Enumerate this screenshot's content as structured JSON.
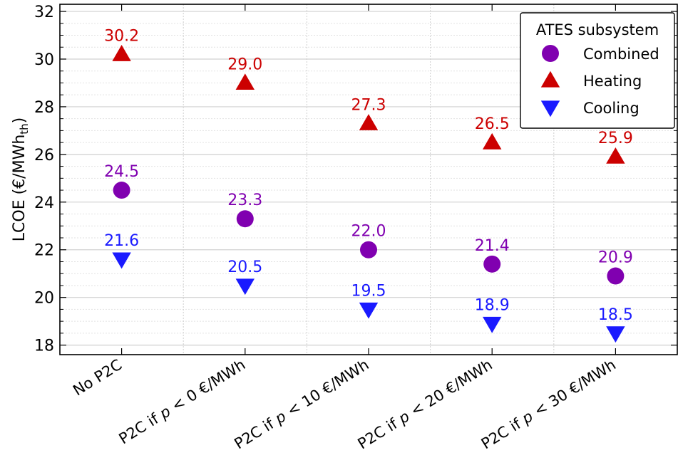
{
  "chart_data": {
    "type": "scatter",
    "title": "",
    "xlabel": "",
    "ylabel_parts": {
      "main": "LCOE (€/MWh",
      "sub": "th",
      "end": ")"
    },
    "ylim": [
      17.6,
      32.3
    ],
    "yticks": [
      18,
      20,
      22,
      24,
      26,
      28,
      30,
      32
    ],
    "grid": true,
    "categories": [
      {
        "label": "No P2C",
        "parts": []
      },
      {
        "label": "P2C if p < 0 €/MWh",
        "parts": [
          {
            "t": "P2C if ",
            "i": false
          },
          {
            "t": "p",
            "i": true
          },
          {
            "t": " < 0 €/MWh",
            "i": false
          }
        ]
      },
      {
        "label": "P2C if p < 10 €/MWh",
        "parts": [
          {
            "t": "P2C if ",
            "i": false
          },
          {
            "t": "p",
            "i": true
          },
          {
            "t": " < 10 €/MWh",
            "i": false
          }
        ]
      },
      {
        "label": "P2C if p < 20 €/MWh",
        "parts": [
          {
            "t": "P2C if ",
            "i": false
          },
          {
            "t": "p",
            "i": true
          },
          {
            "t": " < 20 €/MWh",
            "i": false
          }
        ]
      },
      {
        "label": "P2C if p < 30 €/MWh",
        "parts": [
          {
            "t": "P2C if ",
            "i": false
          },
          {
            "t": "p",
            "i": true
          },
          {
            "t": " < 30 €/MWh",
            "i": false
          }
        ]
      }
    ],
    "series": [
      {
        "name": "Combined",
        "marker": "circle",
        "color": "#8000b0",
        "values": [
          24.5,
          23.3,
          22.0,
          21.4,
          20.9
        ],
        "labels": [
          "24.5",
          "23.3",
          "22.0",
          "21.4",
          "20.9"
        ]
      },
      {
        "name": "Heating",
        "marker": "triangle-up",
        "color": "#cc0000",
        "values": [
          30.2,
          29.0,
          27.3,
          26.5,
          25.9
        ],
        "labels": [
          "30.2",
          "29.0",
          "27.3",
          "26.5",
          "25.9"
        ]
      },
      {
        "name": "Cooling",
        "marker": "triangle-down",
        "color": "#1a1aff",
        "values": [
          21.6,
          20.5,
          19.5,
          18.9,
          18.5
        ],
        "labels": [
          "21.6",
          "20.5",
          "19.5",
          "18.9",
          "18.5"
        ]
      }
    ],
    "legend": {
      "title": "ATES subsystem",
      "placement": "top-right"
    }
  }
}
